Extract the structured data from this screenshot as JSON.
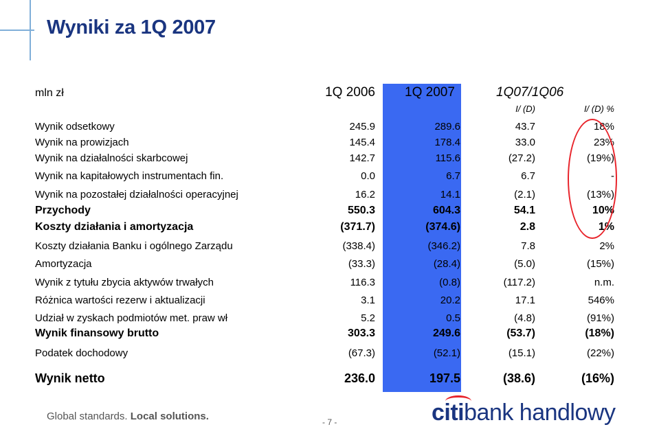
{
  "title": "Wyniki za 1Q 2007",
  "header": {
    "unit": "mln zł",
    "col1": "1Q 2006",
    "col2": "1Q 2007",
    "col3": "1Q07/1Q06",
    "sub3": "I/ (D)",
    "sub4": "I/ (D) %"
  },
  "rows": [
    {
      "label": "Wynik odsetkowy",
      "v1": "245.9",
      "v2": "289.6",
      "v3": "43.7",
      "v4": "18%",
      "style": "norm"
    },
    {
      "label": "Wynik na prowizjach",
      "v1": "145.4",
      "v2": "178.4",
      "v3": "33.0",
      "v4": "23%",
      "style": "norm"
    },
    {
      "label": "Wynik na działalności skarbcowej",
      "v1": "142.7",
      "v2": "115.6",
      "v3": "(27.2)",
      "v4": "(19%)",
      "style": "norm"
    },
    {
      "label": "Wynik na kapitałowych instrumentach fin.",
      "v1": "0.0",
      "v2": "6.7",
      "v3": "6.7",
      "v4": "-",
      "style": "norm"
    },
    {
      "label": "Wynik na pozostałej działalności operacyjnej",
      "v1": "16.2",
      "v2": "14.1",
      "v3": "(2.1)",
      "v4": "(13%)",
      "style": "norm"
    },
    {
      "label": "Przychody",
      "v1": "550.3",
      "v2": "604.3",
      "v3": "54.1",
      "v4": "10%",
      "style": "bold"
    },
    {
      "label": "Koszty działania i amortyzacja",
      "v1": "(371.7)",
      "v2": "(374.6)",
      "v3": "2.8",
      "v4": "1%",
      "style": "bold"
    },
    {
      "label": "Koszty działania Banku i ogólnego Zarządu",
      "v1": "(338.4)",
      "v2": "(346.2)",
      "v3": "7.8",
      "v4": "2%",
      "style": "norm"
    },
    {
      "label": "Amortyzacja",
      "v1": "(33.3)",
      "v2": "(28.4)",
      "v3": "(5.0)",
      "v4": "(15%)",
      "style": "norm"
    },
    {
      "label": "Wynik z tytułu zbycia aktywów trwałych",
      "v1": "116.3",
      "v2": "(0.8)",
      "v3": "(117.2)",
      "v4": "n.m.",
      "style": "norm"
    },
    {
      "label": "Różnica wartości rezerw i aktualizacji",
      "v1": "3.1",
      "v2": "20.2",
      "v3": "17.1",
      "v4": "546%",
      "style": "norm"
    },
    {
      "label": "Udział w zyskach podmiotów met. praw wł",
      "v1": "5.2",
      "v2": "0.5",
      "v3": "(4.8)",
      "v4": "(91%)",
      "style": "norm"
    },
    {
      "label": "Wynik finansowy brutto",
      "v1": "303.3",
      "v2": "249.6",
      "v3": "(53.7)",
      "v4": "(18%)",
      "style": "bold"
    },
    {
      "label": "Podatek dochodowy",
      "v1": "(67.3)",
      "v2": "(52.1)",
      "v3": "(15.1)",
      "v4": "(22%)",
      "style": "norm"
    },
    {
      "label": "Wynik netto",
      "v1": "236.0",
      "v2": "197.5",
      "v3": "(38.6)",
      "v4": "(16%)",
      "style": "big"
    }
  ],
  "footer": {
    "tagline_a": "Global standards.",
    "tagline_b": "Local solutions.",
    "page": "- 7 -",
    "logo_brand": "citi",
    "logo_rest": "bank handlowy"
  },
  "colors": {
    "title": "#1a3580",
    "highlight": "#3a69f2",
    "circle": "#e8242b"
  }
}
